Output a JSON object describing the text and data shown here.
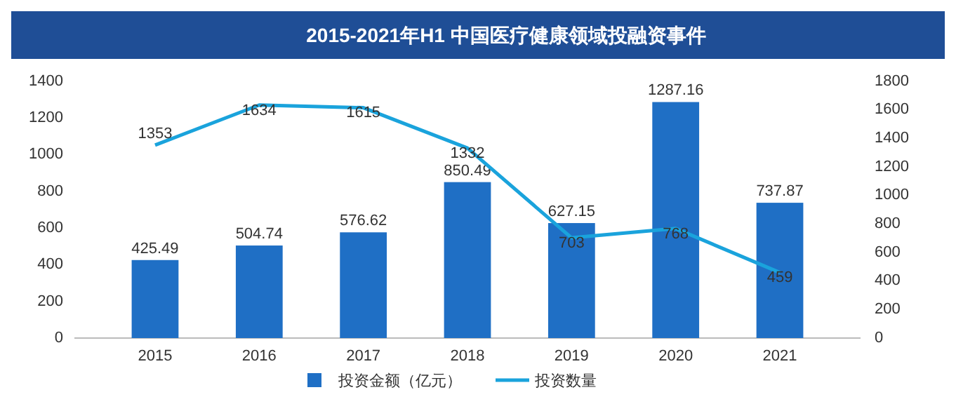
{
  "chart_data": {
    "type": "bar",
    "title": "2015-2021年H1 中国医疗健康领域投融资事件",
    "categories": [
      "2015",
      "2016",
      "2017",
      "2018",
      "2019",
      "2020",
      "2021"
    ],
    "series": [
      {
        "name": "投资金额（亿元）",
        "color": "#1f6fc5",
        "values": [
          425.49,
          504.74,
          576.62,
          850.49,
          627.15,
          1287.16,
          737.87
        ]
      },
      {
        "name": "投资数量",
        "type": "line",
        "axis": "y2",
        "color": "#1aa3dc",
        "values": [
          1353,
          1634,
          1615,
          1332,
          703,
          768,
          459
        ]
      }
    ],
    "ylim": [
      0,
      1400
    ],
    "yticks": [
      0,
      200,
      400,
      600,
      800,
      1000,
      1200,
      1400
    ],
    "y2lim": [
      0,
      1800
    ],
    "y2ticks": [
      0,
      200,
      400,
      600,
      800,
      1000,
      1200,
      1400,
      1600,
      1800
    ],
    "data_labels": true,
    "legend": "bottom",
    "marker": "none"
  }
}
